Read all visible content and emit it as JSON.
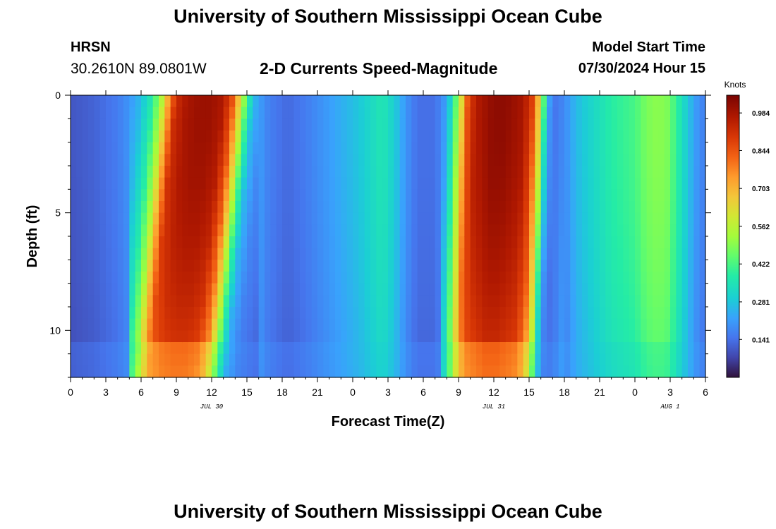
{
  "header": {
    "title": "University of Southern Mississippi Ocean Cube",
    "station": "HRSN",
    "coords": "30.2610N  89.0801W",
    "subtitle": "2-D Currents Speed-Magnitude",
    "model_start_label": "Model Start Time",
    "model_start_value": "07/30/2024 Hour 15"
  },
  "footer": {
    "title": "University of Southern Mississippi Ocean Cube"
  },
  "chart_data": {
    "type": "heatmap",
    "title": "2-D Currents Speed-Magnitude",
    "xlabel": "Forecast Time(Z)",
    "ylabel": "Depth (ft)",
    "x_range_hours": [
      0,
      54
    ],
    "y_range_ft": [
      0,
      12
    ],
    "x_tick_labels": [
      "0",
      "3",
      "6",
      "9",
      "12",
      "15",
      "18",
      "21",
      "0",
      "3",
      "6",
      "9",
      "12",
      "15",
      "18",
      "21",
      "0",
      "3",
      "6"
    ],
    "y_tick_values": [
      0,
      5,
      10
    ],
    "y_tick_labels": [
      "0",
      "5",
      "10"
    ],
    "date_labels": [
      {
        "text": "JUL 30",
        "hour": 12
      },
      {
        "text": "JUL 31",
        "hour": 36
      },
      {
        "text": "AUG 1",
        "hour": 51
      }
    ],
    "colorbar": {
      "unit": "Knots",
      "min": 0.0,
      "max": 1.05,
      "tick_values": [
        0.141,
        0.281,
        0.422,
        0.562,
        0.703,
        0.844,
        0.984
      ],
      "tick_labels": [
        "0.141",
        "0.281",
        "0.422",
        "0.562",
        "0.703",
        "0.844",
        "0.984"
      ]
    },
    "surface_speed_by_hour": [
      [
        0,
        0.1
      ],
      [
        2,
        0.12
      ],
      [
        4,
        0.16
      ],
      [
        5,
        0.2
      ],
      [
        6,
        0.26
      ],
      [
        7,
        0.38
      ],
      [
        7.8,
        0.55
      ],
      [
        8.4,
        0.75
      ],
      [
        9,
        0.92
      ],
      [
        10,
        0.98
      ],
      [
        11,
        1.0
      ],
      [
        12,
        1.0
      ],
      [
        13,
        0.97
      ],
      [
        13.8,
        0.85
      ],
      [
        14.4,
        0.65
      ],
      [
        15,
        0.42
      ],
      [
        15.6,
        0.26
      ],
      [
        16.5,
        0.18
      ],
      [
        17.5,
        0.15
      ],
      [
        18.5,
        0.13
      ],
      [
        20,
        0.16
      ],
      [
        21.5,
        0.2
      ],
      [
        23,
        0.24
      ],
      [
        24.5,
        0.28
      ],
      [
        25.5,
        0.32
      ],
      [
        26.5,
        0.36
      ],
      [
        27.5,
        0.3
      ],
      [
        28.5,
        0.2
      ],
      [
        29.5,
        0.14
      ],
      [
        31,
        0.14
      ],
      [
        32,
        0.22
      ],
      [
        32.6,
        0.38
      ],
      [
        33.2,
        0.6
      ],
      [
        33.8,
        0.85
      ],
      [
        34.5,
        0.96
      ],
      [
        36,
        1.02
      ],
      [
        37,
        1.02
      ],
      [
        38.5,
        0.98
      ],
      [
        39.3,
        0.88
      ],
      [
        39.9,
        0.65
      ],
      [
        40.4,
        0.35
      ],
      [
        40.8,
        0.2
      ],
      [
        41.3,
        0.15
      ],
      [
        42,
        0.18
      ],
      [
        43,
        0.26
      ],
      [
        44,
        0.3
      ],
      [
        45,
        0.34
      ],
      [
        46,
        0.38
      ],
      [
        47,
        0.4
      ],
      [
        48,
        0.42
      ],
      [
        49,
        0.48
      ],
      [
        50,
        0.5
      ],
      [
        50.8,
        0.48
      ],
      [
        51.5,
        0.4
      ],
      [
        52.5,
        0.28
      ],
      [
        53.3,
        0.2
      ],
      [
        54,
        0.16
      ]
    ]
  }
}
